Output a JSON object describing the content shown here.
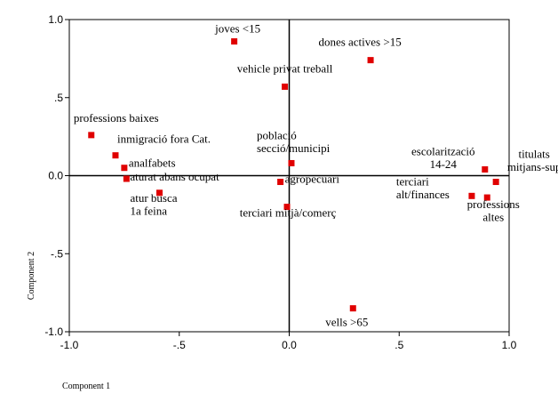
{
  "chart_data": {
    "type": "scatter",
    "x_label": "Component 1",
    "y_label": "Component 2",
    "xlim": [
      -1.0,
      1.0
    ],
    "ylim": [
      -1.0,
      1.0
    ],
    "xticks": [
      {
        "value": -1.0,
        "label": "-1.0"
      },
      {
        "value": -0.5,
        "label": "-.5"
      },
      {
        "value": 0.0,
        "label": "0.0"
      },
      {
        "value": 0.5,
        "label": ".5"
      },
      {
        "value": 1.0,
        "label": "1.0"
      }
    ],
    "yticks": [
      {
        "value": -1.0,
        "label": "-1.0"
      },
      {
        "value": -0.5,
        "label": "-.5"
      },
      {
        "value": 0.0,
        "label": "0.0"
      },
      {
        "value": 0.5,
        "label": ".5"
      },
      {
        "value": 1.0,
        "label": "1.0"
      }
    ],
    "color": "#e00000",
    "labels": [
      [
        "joves <15"
      ],
      [
        "dones actives >15"
      ],
      [
        "vehicle privat treball"
      ],
      [
        "professions baixes"
      ],
      [
        "inmigració fora Cat."
      ],
      [
        "analfabets"
      ],
      [
        "aturat abans ocupat"
      ],
      [
        "atur busca",
        "1a feina"
      ],
      [
        "població",
        "secció/municipi"
      ],
      [
        "agropecuari"
      ],
      [
        "terciari mitjà/comerç"
      ],
      [
        "escolarització",
        "14-24"
      ],
      [
        "titulats",
        "mitjans-sup"
      ],
      [
        "terciari",
        "alt/finances"
      ],
      [
        "professions",
        "altes"
      ],
      [
        "vells >65"
      ]
    ],
    "x": [
      -0.25,
      0.37,
      -0.02,
      -0.9,
      -0.79,
      -0.75,
      -0.74,
      -0.59,
      0.01,
      -0.04,
      -0.01,
      0.89,
      0.94,
      0.83,
      0.9,
      0.29
    ],
    "y": [
      0.86,
      0.74,
      0.57,
      0.26,
      0.13,
      0.05,
      -0.02,
      -0.11,
      0.08,
      -0.04,
      -0.2,
      0.04,
      -0.04,
      -0.13,
      -0.14,
      -0.85
    ]
  }
}
